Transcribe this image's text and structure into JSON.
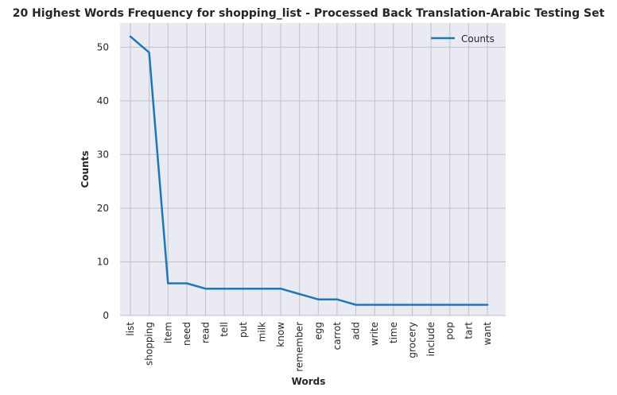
{
  "chart_data": {
    "type": "line",
    "title": "20 Highest Words Frequency for shopping_list - Processed Back Translation-Arabic Testing Set",
    "xlabel": "Words",
    "ylabel": "Counts",
    "categories": [
      "list",
      "shopping",
      "item",
      "need",
      "read",
      "tell",
      "put",
      "milk",
      "know",
      "remember",
      "egg",
      "carrot",
      "add",
      "write",
      "time",
      "grocery",
      "include",
      "pop",
      "tart",
      "want"
    ],
    "series": [
      {
        "name": "Counts",
        "values": [
          52,
          49,
          6,
          6,
          5,
          5,
          5,
          5,
          5,
          4,
          3,
          3,
          2,
          2,
          2,
          2,
          2,
          2,
          2,
          2
        ],
        "color": "#1f77b4"
      }
    ],
    "yticks": [
      0,
      10,
      20,
      30,
      40,
      50
    ],
    "ylim": [
      0,
      54.5
    ],
    "grid": true,
    "legend": "top-right"
  }
}
